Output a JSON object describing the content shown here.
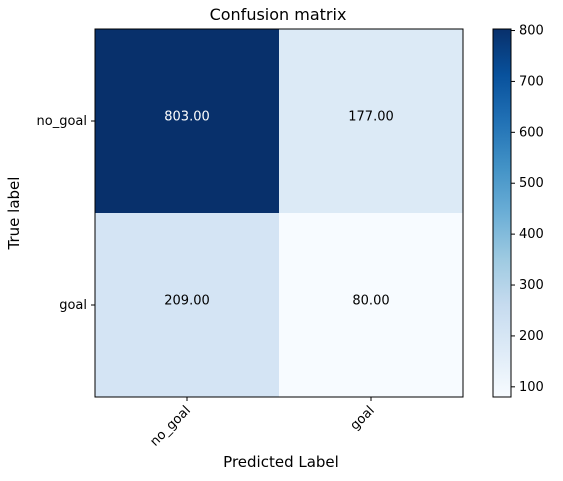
{
  "chart_data": {
    "type": "heatmap",
    "title": "Confusion matrix",
    "xlabel": "Predicted Label",
    "ylabel": "True label",
    "x_categories": [
      "no_goal",
      "goal"
    ],
    "y_categories": [
      "no_goal",
      "goal"
    ],
    "values": [
      [
        803,
        177
      ],
      [
        209,
        80
      ]
    ],
    "cell_labels": [
      [
        "803.00",
        "177.00"
      ],
      [
        "209.00",
        "80.00"
      ]
    ],
    "colormap": "Blues",
    "colorbar": {
      "range": [
        80,
        803
      ],
      "ticks": [
        100,
        200,
        300,
        400,
        500,
        600,
        700,
        800
      ],
      "tick_labels": [
        "100",
        "200",
        "300",
        "400",
        "500",
        "600",
        "700",
        "800"
      ]
    },
    "grid": false
  }
}
